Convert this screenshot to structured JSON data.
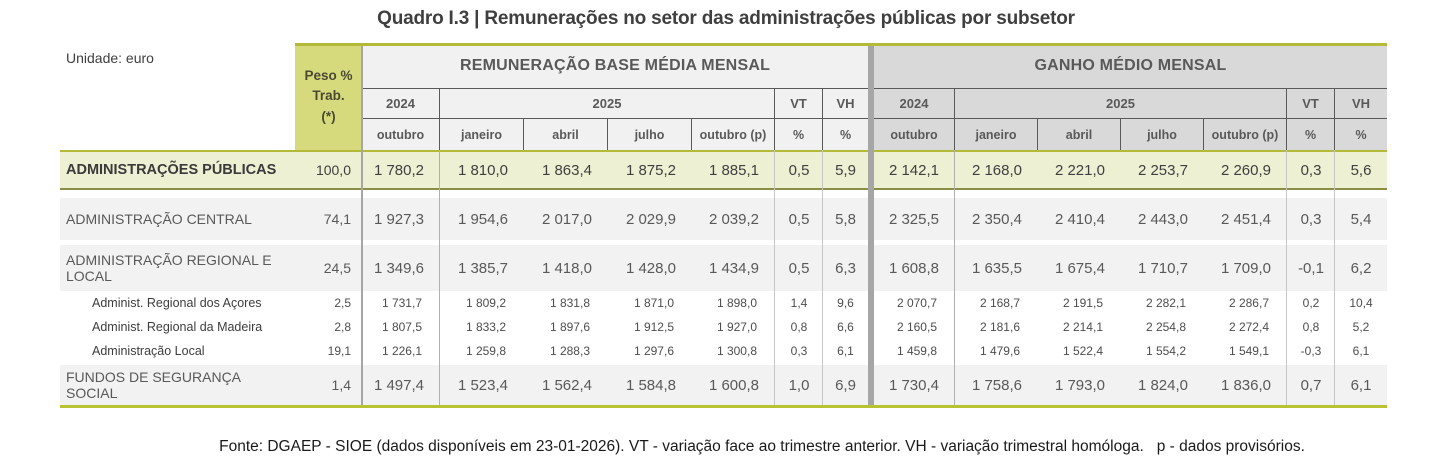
{
  "title": "Quadro I.3 | Remunerações no setor das administrações públicas por subsetor",
  "unit_label": "Unidade: euro",
  "header": {
    "peso_label": "Peso %\nTrab.\n(*)",
    "groups": [
      {
        "title": "REMUNERAÇÃO BASE MÉDIA MENSAL",
        "year_prev": "2024",
        "year_curr": "2025",
        "vt": "VT",
        "vh": "VH",
        "pct": "%",
        "months": [
          "outubro",
          "janeiro",
          "abril",
          "julho",
          "outubro (p)"
        ]
      },
      {
        "title": "GANHO MÉDIO MENSAL",
        "year_prev": "2024",
        "year_curr": "2025",
        "vt": "VT",
        "vh": "VH",
        "pct": "%",
        "months": [
          "outubro",
          "janeiro",
          "abril",
          "julho",
          "outubro (p)"
        ]
      }
    ]
  },
  "rows": [
    {
      "label": "ADMINISTRAÇÕES PÚBLICAS",
      "peso": "100,0",
      "rem": [
        "1 780,2",
        "1 810,0",
        "1 863,4",
        "1 875,2",
        "1 885,1"
      ],
      "rem_vt": "0,5",
      "rem_vh": "5,9",
      "ganho": [
        "2 142,1",
        "2 168,0",
        "2 221,0",
        "2 253,7",
        "2 260,9"
      ],
      "ganho_vt": "0,3",
      "ganho_vh": "5,6"
    },
    {
      "label": "ADMINISTRAÇÃO CENTRAL",
      "peso": "74,1",
      "rem": [
        "1 927,3",
        "1 954,6",
        "2 017,0",
        "2 029,9",
        "2 039,2"
      ],
      "rem_vt": "0,5",
      "rem_vh": "5,8",
      "ganho": [
        "2 325,5",
        "2 350,4",
        "2 410,4",
        "2 443,0",
        "2 451,4"
      ],
      "ganho_vt": "0,3",
      "ganho_vh": "5,4"
    },
    {
      "label": "ADMINISTRAÇÃO REGIONAL E LOCAL",
      "peso": "24,5",
      "rem": [
        "1 349,6",
        "1 385,7",
        "1 418,0",
        "1 428,0",
        "1 434,9"
      ],
      "rem_vt": "0,5",
      "rem_vh": "6,3",
      "ganho": [
        "1 608,8",
        "1 635,5",
        "1 675,4",
        "1 710,7",
        "1 709,0"
      ],
      "ganho_vt": "-0,1",
      "ganho_vh": "6,2"
    },
    {
      "label": "Administ. Regional dos Açores",
      "peso": "2,5",
      "rem": [
        "1 731,7",
        "1 809,2",
        "1 831,8",
        "1 871,0",
        "1 898,0"
      ],
      "rem_vt": "1,4",
      "rem_vh": "9,6",
      "ganho": [
        "2 070,7",
        "2 168,7",
        "2 191,5",
        "2 282,1",
        "2 286,7"
      ],
      "ganho_vt": "0,2",
      "ganho_vh": "10,4"
    },
    {
      "label": "Administ. Regional da Madeira",
      "peso": "2,8",
      "rem": [
        "1 807,5",
        "1 833,2",
        "1 897,6",
        "1 912,5",
        "1 927,0"
      ],
      "rem_vt": "0,8",
      "rem_vh": "6,6",
      "ganho": [
        "2 160,5",
        "2 181,6",
        "2 214,1",
        "2 254,8",
        "2 272,4"
      ],
      "ganho_vt": "0,8",
      "ganho_vh": "5,2"
    },
    {
      "label": "Administração Local",
      "peso": "19,1",
      "rem": [
        "1 226,1",
        "1 259,8",
        "1 288,3",
        "1 297,6",
        "1 300,8"
      ],
      "rem_vt": "0,3",
      "rem_vh": "6,1",
      "ganho": [
        "1 459,8",
        "1 479,6",
        "1 522,4",
        "1 554,2",
        "1 549,1"
      ],
      "ganho_vt": "-0,3",
      "ganho_vh": "6,1"
    },
    {
      "label": "FUNDOS DE SEGURANÇA SOCIAL",
      "peso": "1,4",
      "rem": [
        "1 497,4",
        "1 523,4",
        "1 562,4",
        "1 584,8",
        "1 600,8"
      ],
      "rem_vt": "1,0",
      "rem_vh": "6,9",
      "ganho": [
        "1 730,4",
        "1 758,6",
        "1 793,0",
        "1 824,0",
        "1 836,0"
      ],
      "ganho_vt": "0,7",
      "ganho_vh": "6,1"
    }
  ],
  "footer": "Fonte: DGAEP - SIOE (dados disponíveis em 23-01-2026). VT - variação face ao trimestre anterior. VH - variação trimestral homóloga.   p - dados provisórios.",
  "colors": {
    "accent_olive": "#b2ba37",
    "peso_header_bg": "#d6d97c",
    "highlight_row_bg": "#edf0d2",
    "group1_header_bg": "#f1f1f1",
    "group2_header_bg": "#d9d9d9",
    "row_bg": "#f2f2f2",
    "divider_gray": "#a6a6a6"
  }
}
